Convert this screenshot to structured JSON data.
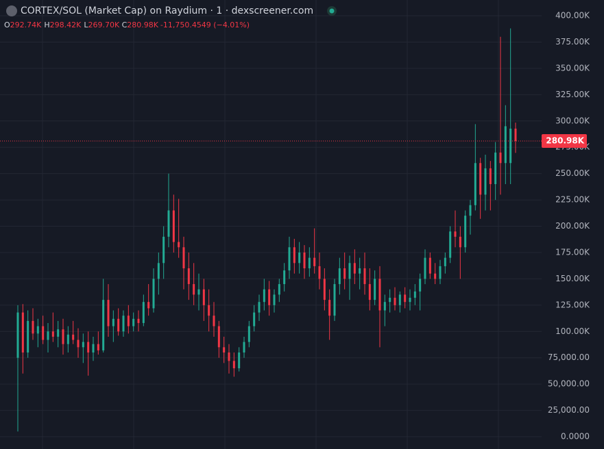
{
  "chart_data": {
    "type": "candlestick",
    "title": "CORTEX/SOL (Market Cap) on Raydium · 1 · dexscreener.com",
    "ohlc_legend": [
      {
        "key": "O",
        "value": "292.74K"
      },
      {
        "key": "H",
        "value": "298.42K"
      },
      {
        "key": "L",
        "value": "269.70K"
      },
      {
        "key": "C",
        "value": "280.98K"
      }
    ],
    "change_label": "-11,750.4549 (−4.01%)",
    "last_price": {
      "value": 280980,
      "label": "280.98K"
    },
    "up_color": "#22ab94",
    "down_color": "#f23645",
    "grid": true,
    "ylim": [
      0,
      400000
    ],
    "yticks": [
      {
        "value": 0,
        "label": "0.0000"
      },
      {
        "value": 25000,
        "label": "25,000.00"
      },
      {
        "value": 50000,
        "label": "50,000.00"
      },
      {
        "value": 75000,
        "label": "75,000.00"
      },
      {
        "value": 100000,
        "label": "100.00K"
      },
      {
        "value": 125000,
        "label": "125.00K"
      },
      {
        "value": 150000,
        "label": "150.00K"
      },
      {
        "value": 175000,
        "label": "175.00K"
      },
      {
        "value": 200000,
        "label": "200.00K"
      },
      {
        "value": 225000,
        "label": "225.00K"
      },
      {
        "value": 250000,
        "label": "250.00K"
      },
      {
        "value": 275000,
        "label": "275.00K"
      },
      {
        "value": 300000,
        "label": "300.00K"
      },
      {
        "value": 325000,
        "label": "325.00K"
      },
      {
        "value": 350000,
        "label": "350.00K"
      },
      {
        "value": 375000,
        "label": "375.00K"
      },
      {
        "value": 400000,
        "label": "400.00K"
      }
    ],
    "values": [
      [
        75000,
        125000,
        5000,
        118000
      ],
      [
        118000,
        126000,
        60000,
        80000
      ],
      [
        80000,
        120000,
        75000,
        110000
      ],
      [
        110000,
        122000,
        92000,
        98000
      ],
      [
        98000,
        112000,
        85000,
        105000
      ],
      [
        105000,
        115000,
        88000,
        92000
      ],
      [
        92000,
        108000,
        80000,
        100000
      ],
      [
        100000,
        118000,
        90000,
        95000
      ],
      [
        95000,
        110000,
        85000,
        102000
      ],
      [
        102000,
        112000,
        78000,
        88000
      ],
      [
        88000,
        105000,
        80000,
        97000
      ],
      [
        97000,
        110000,
        88000,
        92000
      ],
      [
        92000,
        103000,
        75000,
        85000
      ],
      [
        85000,
        98000,
        70000,
        90000
      ],
      [
        90000,
        100000,
        58000,
        80000
      ],
      [
        80000,
        95000,
        72000,
        88000
      ],
      [
        88000,
        100000,
        78000,
        82000
      ],
      [
        82000,
        150000,
        80000,
        130000
      ],
      [
        130000,
        145000,
        95000,
        105000
      ],
      [
        105000,
        120000,
        90000,
        112000
      ],
      [
        112000,
        122000,
        96000,
        100000
      ],
      [
        100000,
        120000,
        95000,
        115000
      ],
      [
        115000,
        125000,
        98000,
        105000
      ],
      [
        105000,
        118000,
        100000,
        112000
      ],
      [
        112000,
        120000,
        100000,
        108000
      ],
      [
        108000,
        135000,
        105000,
        128000
      ],
      [
        128000,
        145000,
        115000,
        122000
      ],
      [
        122000,
        160000,
        118000,
        150000
      ],
      [
        150000,
        175000,
        135000,
        165000
      ],
      [
        165000,
        200000,
        150000,
        190000
      ],
      [
        190000,
        250000,
        180000,
        215000
      ],
      [
        215000,
        230000,
        175000,
        185000
      ],
      [
        185000,
        226000,
        170000,
        180000
      ],
      [
        180000,
        190000,
        140000,
        160000
      ],
      [
        160000,
        175000,
        130000,
        145000
      ],
      [
        145000,
        165000,
        125000,
        135000
      ],
      [
        135000,
        155000,
        120000,
        140000
      ],
      [
        140000,
        150000,
        110000,
        125000
      ],
      [
        125000,
        140000,
        100000,
        115000
      ],
      [
        115000,
        128000,
        95000,
        105000
      ],
      [
        105000,
        110000,
        75000,
        85000
      ],
      [
        85000,
        95000,
        70000,
        80000
      ],
      [
        80000,
        88000,
        60000,
        72000
      ],
      [
        72000,
        80000,
        57000,
        65000
      ],
      [
        65000,
        85000,
        62000,
        80000
      ],
      [
        80000,
        95000,
        75000,
        90000
      ],
      [
        90000,
        110000,
        85000,
        105000
      ],
      [
        105000,
        125000,
        100000,
        118000
      ],
      [
        118000,
        135000,
        110000,
        128000
      ],
      [
        128000,
        150000,
        120000,
        140000
      ],
      [
        140000,
        148000,
        115000,
        125000
      ],
      [
        125000,
        140000,
        118000,
        135000
      ],
      [
        135000,
        150000,
        128000,
        145000
      ],
      [
        145000,
        165000,
        138000,
        158000
      ],
      [
        158000,
        190000,
        150000,
        180000
      ],
      [
        180000,
        188000,
        155000,
        165000
      ],
      [
        165000,
        185000,
        155000,
        175000
      ],
      [
        175000,
        182000,
        150000,
        160000
      ],
      [
        160000,
        180000,
        152000,
        170000
      ],
      [
        170000,
        198000,
        155000,
        162000
      ],
      [
        162000,
        175000,
        140000,
        150000
      ],
      [
        150000,
        160000,
        120000,
        130000
      ],
      [
        130000,
        140000,
        92000,
        115000
      ],
      [
        115000,
        150000,
        110000,
        145000
      ],
      [
        145000,
        170000,
        135000,
        160000
      ],
      [
        160000,
        175000,
        140000,
        150000
      ],
      [
        150000,
        172000,
        130000,
        165000
      ],
      [
        165000,
        178000,
        145000,
        155000
      ],
      [
        155000,
        170000,
        140000,
        160000
      ],
      [
        160000,
        175000,
        135000,
        145000
      ],
      [
        145000,
        160000,
        120000,
        130000
      ],
      [
        130000,
        158000,
        125000,
        150000
      ],
      [
        150000,
        162000,
        85000,
        120000
      ],
      [
        120000,
        135000,
        105000,
        128000
      ],
      [
        128000,
        140000,
        118000,
        132000
      ],
      [
        132000,
        142000,
        120000,
        125000
      ],
      [
        125000,
        138000,
        118000,
        135000
      ],
      [
        135000,
        142000,
        122000,
        128000
      ],
      [
        128000,
        140000,
        120000,
        132000
      ],
      [
        132000,
        145000,
        125000,
        138000
      ],
      [
        138000,
        155000,
        120000,
        150000
      ],
      [
        150000,
        178000,
        145000,
        170000
      ],
      [
        170000,
        175000,
        150000,
        155000
      ],
      [
        155000,
        165000,
        145000,
        150000
      ],
      [
        150000,
        168000,
        145000,
        162000
      ],
      [
        162000,
        175000,
        155000,
        170000
      ],
      [
        170000,
        200000,
        165000,
        195000
      ],
      [
        195000,
        215000,
        180000,
        190000
      ],
      [
        190000,
        200000,
        150000,
        180000
      ],
      [
        180000,
        215000,
        175000,
        210000
      ],
      [
        210000,
        225000,
        192000,
        220000
      ],
      [
        220000,
        297000,
        215000,
        260000
      ],
      [
        260000,
        265000,
        207000,
        230000
      ],
      [
        230000,
        268000,
        215000,
        255000
      ],
      [
        255000,
        262000,
        215000,
        240000
      ],
      [
        240000,
        280000,
        225000,
        270000
      ],
      [
        270000,
        380000,
        230000,
        260000
      ],
      [
        260000,
        315000,
        240000,
        295000
      ],
      [
        260000,
        388000,
        240000,
        292740
      ],
      [
        292740,
        298420,
        269700,
        280980
      ]
    ]
  }
}
